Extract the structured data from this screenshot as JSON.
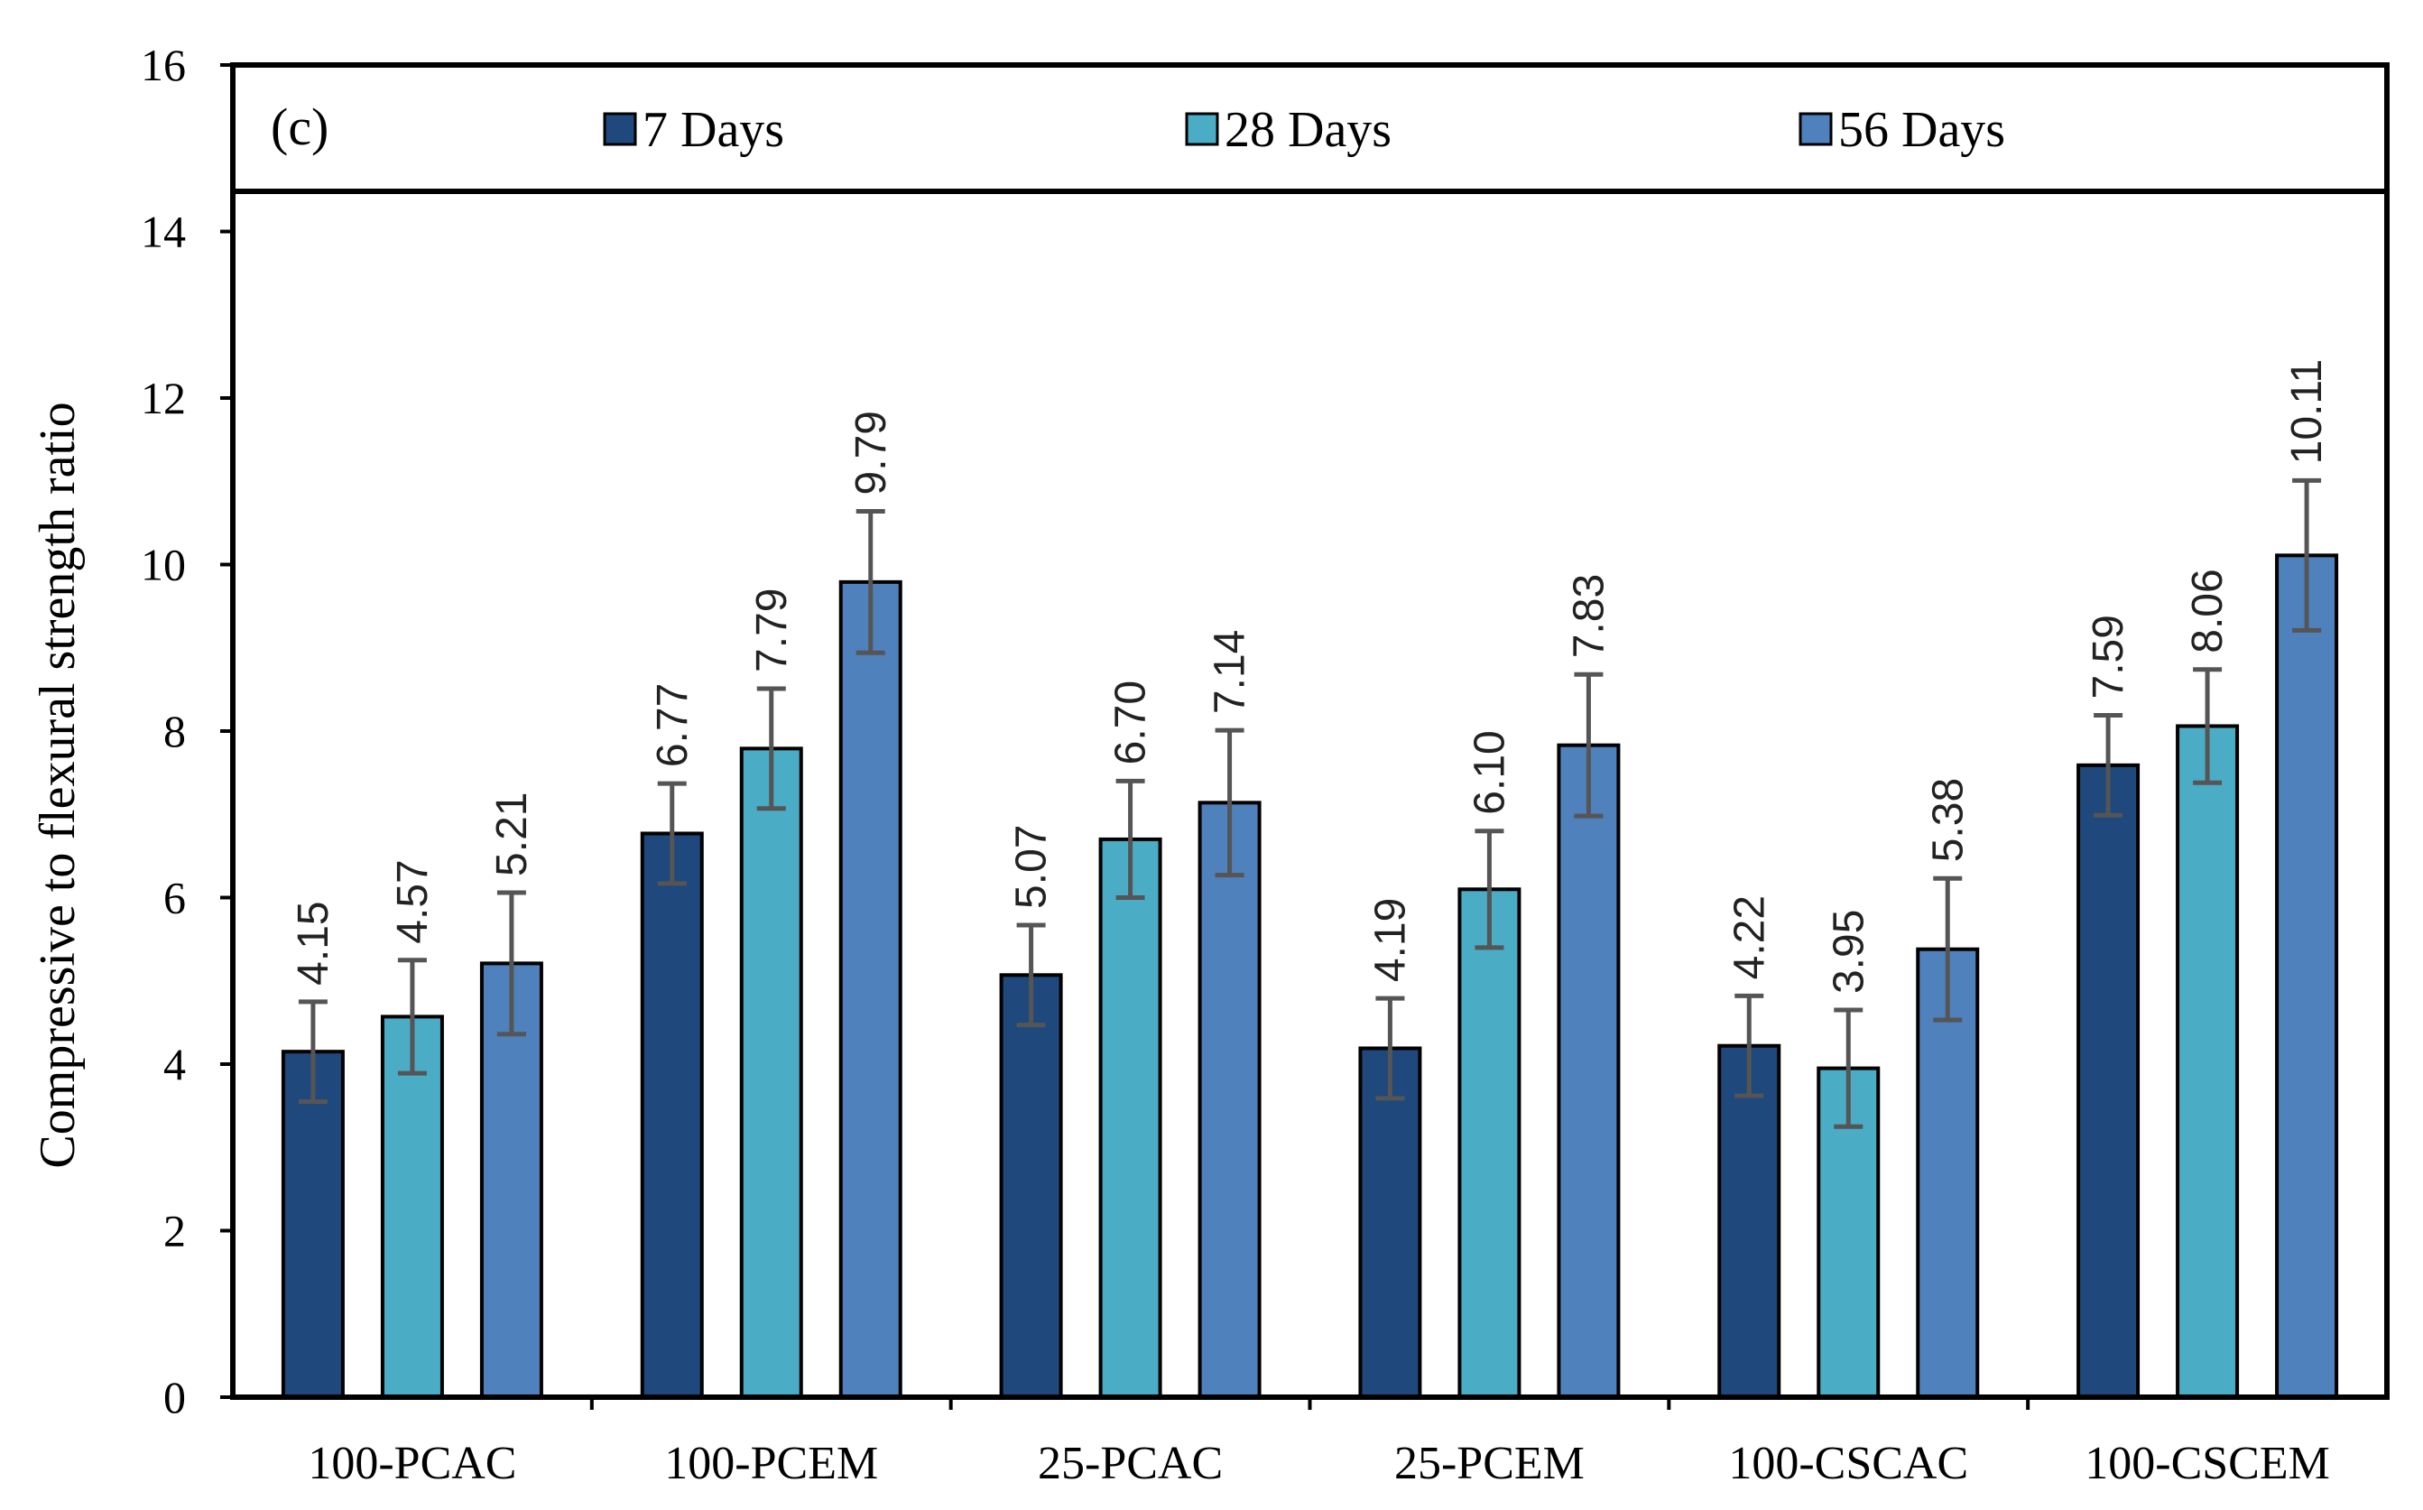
{
  "chart_data": {
    "type": "bar",
    "panel_label": "(c)",
    "ylabel": "Compressive to flexural  strength ratio",
    "xlabel": "",
    "ylim": [
      0,
      16
    ],
    "yticks": [
      0,
      2,
      4,
      6,
      8,
      10,
      12,
      14,
      16
    ],
    "yticks_text": [
      "0",
      "2",
      "4",
      "6",
      "8",
      "10",
      "12",
      "14",
      "16"
    ],
    "categories": [
      "100-PCAC",
      "100-PCEM",
      "25-PCAC",
      "25-PCEM",
      "100-CSCAC",
      "100-CSCEM"
    ],
    "legend_position": "top",
    "grid": false,
    "series": [
      {
        "name": "7 Days",
        "color": "#1f487c",
        "values": [
          4.15,
          6.77,
          5.07,
          4.19,
          4.22,
          7.59
        ],
        "labels": [
          "4.15",
          "6.77",
          "5.07",
          "4.19",
          "4.22",
          "7.59"
        ],
        "errors": [
          0.6,
          0.6,
          0.6,
          0.6,
          0.6,
          0.6
        ]
      },
      {
        "name": "28 Days",
        "color": "#4bacc6",
        "values": [
          4.57,
          7.79,
          6.7,
          6.1,
          3.95,
          8.06
        ],
        "labels": [
          "4.57",
          "7.79",
          "6.70",
          "6.10",
          "3.95",
          "8.06"
        ],
        "errors": [
          0.68,
          0.72,
          0.7,
          0.7,
          0.7,
          0.68
        ]
      },
      {
        "name": "56 Days",
        "color": "#4f81bd",
        "values": [
          5.21,
          9.79,
          7.14,
          7.83,
          5.38,
          10.11
        ],
        "labels": [
          "5.21",
          "9.79",
          "7.14",
          "7.83",
          "5.38",
          "10.11"
        ],
        "errors": [
          0.85,
          0.85,
          0.87,
          0.85,
          0.85,
          0.9
        ]
      }
    ]
  }
}
